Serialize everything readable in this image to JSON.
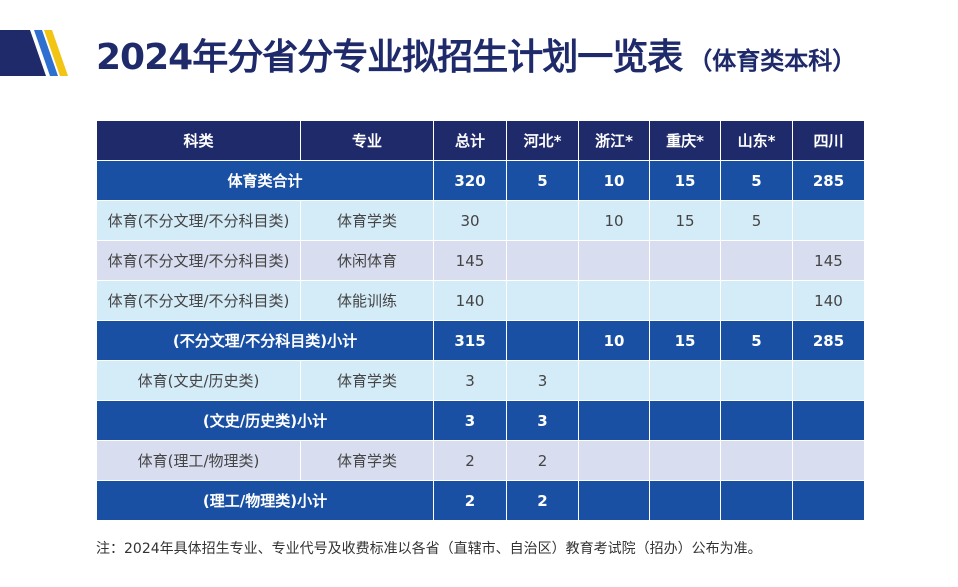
{
  "header": {
    "title": "2024年分省分专业拟招生计划一览表",
    "subtitle": "（体育类本科）"
  },
  "table": {
    "columns": [
      "科类",
      "专业",
      "总计",
      "河北*",
      "浙江*",
      "重庆*",
      "山东*",
      "四川"
    ],
    "rows": [
      [
        "体育类合计",
        320,
        5,
        10,
        15,
        5,
        285
      ],
      [
        "体育(不分文理/不分科目类)",
        "体育学类",
        30,
        null,
        10,
        15,
        5,
        null
      ],
      [
        "体育(不分文理/不分科目类)",
        "休闲体育",
        145,
        null,
        null,
        null,
        null,
        145
      ],
      [
        "体育(不分文理/不分科目类)",
        "体能训练",
        140,
        null,
        null,
        null,
        null,
        140
      ],
      [
        "(不分文理/不分科目类)小计",
        315,
        null,
        10,
        15,
        5,
        285
      ],
      [
        "体育(文史/历史类)",
        "体育学类",
        3,
        3,
        null,
        null,
        null,
        null
      ],
      [
        "(文史/历史类)小计",
        3,
        3,
        null,
        null,
        null,
        null
      ],
      [
        "体育(理工/物理类)",
        "体育学类",
        2,
        2,
        null,
        null,
        null,
        null
      ],
      [
        "(理工/物理类)小计",
        2,
        2,
        null,
        null,
        null,
        null
      ]
    ]
  },
  "note": "注：2024年具体招生专业、专业代号及收费标准以各省（直辖市、自治区）教育考试院（招办）公布为准。"
}
